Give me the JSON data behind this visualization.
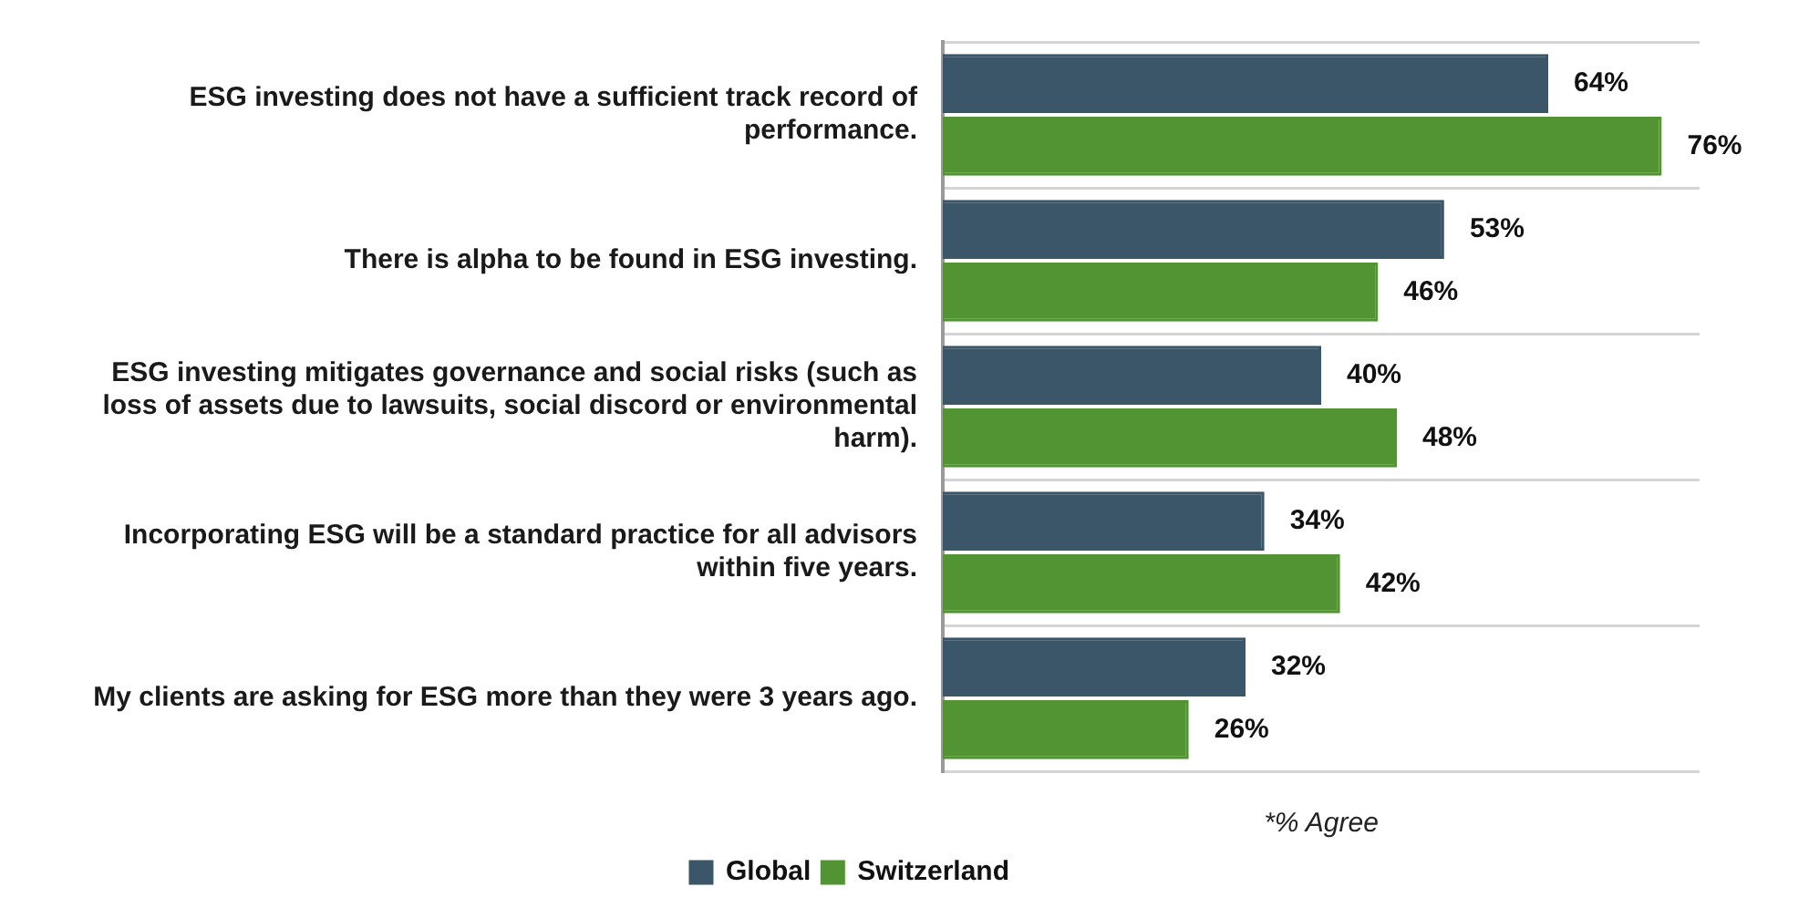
{
  "chart_data": {
    "type": "bar",
    "orientation": "horizontal",
    "categories": [
      "ESG investing does not have a sufficient track record of performance.",
      "There is alpha to be found in ESG investing.",
      "ESG investing mitigates governance and social risks (such as loss of assets due to lawsuits, social discord or environmental harm).",
      "Incorporating ESG will be a standard practice for all advisors within five years.",
      "My clients are asking for ESG more than they were 3 years ago."
    ],
    "series": [
      {
        "name": "Global",
        "color": "#3b5569",
        "values": [
          64,
          53,
          40,
          34,
          32
        ],
        "value_labels": [
          "64%",
          "53%",
          "40%",
          "34%",
          "32%"
        ]
      },
      {
        "name": "Switzerland",
        "color": "#529433",
        "values": [
          76,
          46,
          48,
          42,
          26
        ],
        "value_labels": [
          "76%",
          "46%",
          "48%",
          "42%",
          "26%"
        ]
      }
    ],
    "xlabel": "*% Agree",
    "grid": "y",
    "legend": "bottom",
    "tick_labels": "y"
  }
}
